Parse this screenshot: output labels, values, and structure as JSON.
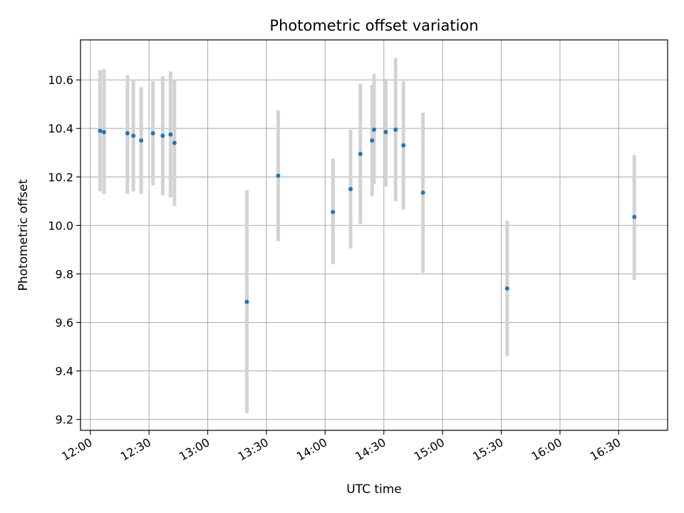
{
  "chart_data": {
    "type": "scatter",
    "title": "Photometric offset variation",
    "xlabel": "UTC time",
    "ylabel": "Photometric offset",
    "x_tick_labels": [
      "12:00",
      "12:30",
      "13:00",
      "13:30",
      "14:00",
      "14:30",
      "15:00",
      "15:30",
      "16:00",
      "16:30"
    ],
    "y_tick_labels": [
      "9.2",
      "9.4",
      "9.6",
      "9.8",
      "10.0",
      "10.2",
      "10.4",
      "10.6"
    ],
    "y_ticks": [
      9.2,
      9.4,
      9.6,
      9.8,
      10.0,
      10.2,
      10.4,
      10.6
    ],
    "x_ticks": [
      "12:00",
      "12:30",
      "13:00",
      "13:30",
      "14:00",
      "14:30",
      "15:00",
      "15:30",
      "16:00",
      "16:30"
    ],
    "xlim": [
      "11:55",
      "16:55"
    ],
    "ylim": [
      9.155,
      10.765
    ],
    "grid": true,
    "colors": {
      "point": "#1f77b4",
      "errorbar": "#d3d3d3",
      "grid": "#b0b0b0"
    },
    "series": [
      {
        "points": [
          {
            "x": "12:05",
            "y": 10.39,
            "ylow": 10.14,
            "yhigh": 10.64
          },
          {
            "x": "12:07",
            "y": 10.385,
            "ylow": 10.13,
            "yhigh": 10.645
          },
          {
            "x": "12:19",
            "y": 10.38,
            "ylow": 10.13,
            "yhigh": 10.62
          },
          {
            "x": "12:22",
            "y": 10.37,
            "ylow": 10.14,
            "yhigh": 10.6
          },
          {
            "x": "12:26",
            "y": 10.35,
            "ylow": 10.13,
            "yhigh": 10.57
          },
          {
            "x": "12:32",
            "y": 10.38,
            "ylow": 10.165,
            "yhigh": 10.595
          },
          {
            "x": "12:37",
            "y": 10.37,
            "ylow": 10.125,
            "yhigh": 10.615
          },
          {
            "x": "12:41",
            "y": 10.375,
            "ylow": 10.115,
            "yhigh": 10.635
          },
          {
            "x": "12:43",
            "y": 10.34,
            "ylow": 10.08,
            "yhigh": 10.6
          },
          {
            "x": "13:20",
            "y": 9.685,
            "ylow": 9.225,
            "yhigh": 10.145
          },
          {
            "x": "13:36",
            "y": 10.205,
            "ylow": 9.935,
            "yhigh": 10.475
          },
          {
            "x": "14:04",
            "y": 10.055,
            "ylow": 9.84,
            "yhigh": 10.275
          },
          {
            "x": "14:13",
            "y": 10.15,
            "ylow": 9.905,
            "yhigh": 10.395
          },
          {
            "x": "14:18",
            "y": 10.295,
            "ylow": 10.005,
            "yhigh": 10.585
          },
          {
            "x": "14:24",
            "y": 10.35,
            "ylow": 10.12,
            "yhigh": 10.58
          },
          {
            "x": "14:25",
            "y": 10.395,
            "ylow": 10.17,
            "yhigh": 10.625
          },
          {
            "x": "14:31",
            "y": 10.385,
            "ylow": 10.16,
            "yhigh": 10.605
          },
          {
            "x": "14:36",
            "y": 10.395,
            "ylow": 10.1,
            "yhigh": 10.69
          },
          {
            "x": "14:40",
            "y": 10.33,
            "ylow": 10.065,
            "yhigh": 10.595
          },
          {
            "x": "14:50",
            "y": 10.135,
            "ylow": 9.805,
            "yhigh": 10.465
          },
          {
            "x": "15:33",
            "y": 9.74,
            "ylow": 9.46,
            "yhigh": 10.02
          },
          {
            "x": "16:38",
            "y": 10.035,
            "ylow": 9.775,
            "yhigh": 10.29
          }
        ]
      }
    ]
  }
}
